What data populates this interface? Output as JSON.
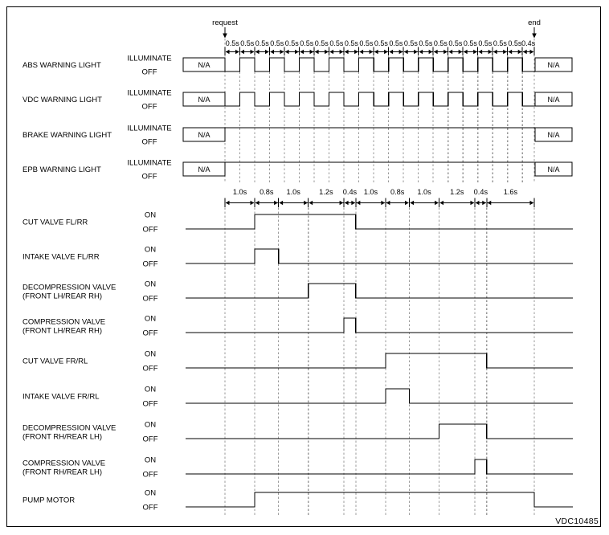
{
  "figure_id": "VDC10485",
  "palette": {
    "line": "#000000",
    "guide": "#9a9a9a",
    "background": "#ffffff",
    "text": "#000000"
  },
  "timeline_top": {
    "request_label": "request",
    "end_label": "end",
    "segment_labels": [
      "0.5s",
      "0.5s",
      "0.5s",
      "0.5s",
      "0.5s",
      "0.5s",
      "0.5s",
      "0.5s",
      "0.5s",
      "0.5s",
      "0.5s",
      "0.5s",
      "0.5s",
      "0.5s",
      "0.5s",
      "0.5s",
      "0.5s",
      "0.5s",
      "0.5s",
      "0.5s",
      "0.4s"
    ]
  },
  "warning_lights": {
    "rows": [
      {
        "label": "ABS WARNING LIGHT",
        "high_label": "ILLUMINATE",
        "low_label": "OFF",
        "na_left": "N/A",
        "na_right": "N/A",
        "on_intervals_s": [
          [
            0.5,
            1.0
          ],
          [
            1.5,
            2.0
          ],
          [
            2.5,
            3.0
          ],
          [
            3.5,
            4.0
          ],
          [
            4.5,
            5.0
          ],
          [
            5.5,
            6.0
          ],
          [
            6.5,
            7.0
          ],
          [
            7.5,
            8.0
          ],
          [
            8.5,
            9.0
          ],
          [
            9.5,
            10.0
          ]
        ]
      },
      {
        "label": "VDC WARNING LIGHT",
        "high_label": "ILLUMINATE",
        "low_label": "OFF",
        "na_left": "N/A",
        "na_right": "N/A",
        "on_intervals_s": [
          [
            0.5,
            1.0
          ],
          [
            1.5,
            2.0
          ],
          [
            2.5,
            3.0
          ],
          [
            3.5,
            4.0
          ],
          [
            4.5,
            5.0
          ],
          [
            5.5,
            6.0
          ],
          [
            6.5,
            7.0
          ],
          [
            7.5,
            8.0
          ],
          [
            8.5,
            9.0
          ],
          [
            9.5,
            10.0
          ]
        ]
      },
      {
        "label": "BRAKE WARNING LIGHT",
        "high_label": "ILLUMINATE",
        "low_label": "OFF",
        "na_left": "N/A",
        "na_right": "N/A",
        "on_intervals_s": [
          [
            0.0,
            10.4
          ]
        ]
      },
      {
        "label": "EPB WARNING LIGHT",
        "high_label": "ILLUMINATE",
        "low_label": "OFF",
        "na_left": "N/A",
        "na_right": "N/A",
        "on_intervals_s": [
          [
            0.0,
            10.4
          ]
        ]
      }
    ]
  },
  "timeline_valves": {
    "segment_labels": [
      "1.0s",
      "0.8s",
      "1.0s",
      "1.2s",
      "0.4s",
      "1.0s",
      "0.8s",
      "1.0s",
      "1.2s",
      "0.4s",
      "1.6s"
    ]
  },
  "valves": {
    "rows": [
      {
        "label_lines": [
          "CUT VALVE FL/RR"
        ],
        "high_label": "ON",
        "low_label": "OFF",
        "on_intervals_s": [
          [
            1.0,
            4.4
          ]
        ]
      },
      {
        "label_lines": [
          "INTAKE VALVE FL/RR"
        ],
        "high_label": "ON",
        "low_label": "OFF",
        "on_intervals_s": [
          [
            1.0,
            1.8
          ]
        ]
      },
      {
        "label_lines": [
          "DECOMPRESSION VALVE",
          "(FRONT LH/REAR RH)"
        ],
        "high_label": "ON",
        "low_label": "OFF",
        "on_intervals_s": [
          [
            2.8,
            4.4
          ]
        ]
      },
      {
        "label_lines": [
          "COMPRESSION VALVE",
          "(FRONT LH/REAR RH)"
        ],
        "high_label": "ON",
        "low_label": "OFF",
        "on_intervals_s": [
          [
            4.0,
            4.4
          ]
        ]
      },
      {
        "label_lines": [
          "CUT VALVE FR/RL"
        ],
        "high_label": "ON",
        "low_label": "OFF",
        "on_intervals_s": [
          [
            5.4,
            8.8
          ]
        ]
      },
      {
        "label_lines": [
          "INTAKE VALVE FR/RL"
        ],
        "high_label": "ON",
        "low_label": "OFF",
        "on_intervals_s": [
          [
            5.4,
            6.2
          ]
        ]
      },
      {
        "label_lines": [
          "DECOMPRESSION VALVE",
          "(FRONT RH/REAR LH)"
        ],
        "high_label": "ON",
        "low_label": "OFF",
        "on_intervals_s": [
          [
            7.2,
            8.8
          ]
        ]
      },
      {
        "label_lines": [
          "COMPRESSION VALVE",
          "(FRONT RH/REAR LH)"
        ],
        "high_label": "ON",
        "low_label": "OFF",
        "on_intervals_s": [
          [
            8.4,
            8.8
          ]
        ]
      },
      {
        "label_lines": [
          "PUMP MOTOR"
        ],
        "high_label": "ON",
        "low_label": "OFF",
        "on_intervals_s": [
          [
            1.0,
            10.4
          ]
        ]
      }
    ]
  }
}
